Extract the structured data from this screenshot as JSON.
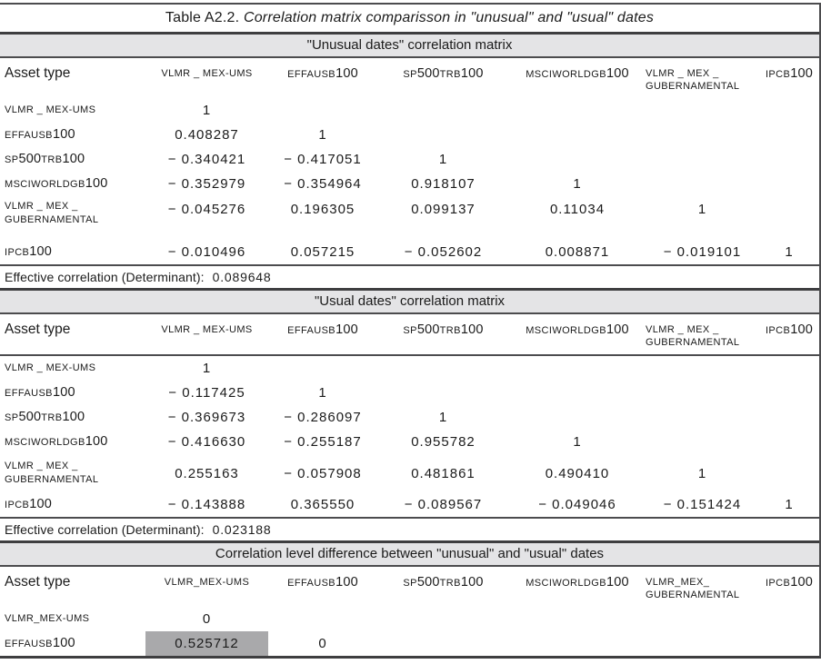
{
  "colors": {
    "text": "#1b1b1b",
    "rule": "#4c4c4e",
    "rule_thick": "#3e3e40",
    "band_bg": "#e4e4e6",
    "highlight_bg": "#a9a9ab"
  },
  "title": {
    "prefix": "Table A2.2. ",
    "rest": "Correlation matrix comparisson in \"unusual\" and \"usual\" dates"
  },
  "sections": [
    {
      "id": "unusual",
      "band_title": "\"Unusual dates\" correlation matrix",
      "headers": [
        "Asset type",
        "VLMR _ MEX-UMS",
        "EFFAUSB100",
        "SP500TRB100",
        "MSCIWORLDGB100",
        "VLMR _ MEX _\nGUBERNAMENTAL",
        "IPCB100"
      ],
      "rows": [
        {
          "label": "VLMR _ MEX-UMS",
          "values": [
            "1"
          ]
        },
        {
          "label": "EFFAUSB100",
          "values": [
            "0.408287",
            "1"
          ]
        },
        {
          "label": "SP500TRB100",
          "values": [
            "− 0.340421",
            "− 0.417051",
            "1"
          ]
        },
        {
          "label": "MSCIWORLDGB100",
          "values": [
            "− 0.352979",
            "− 0.354964",
            "0.918107",
            "1"
          ]
        },
        {
          "label": "VLMR _ MEX _\nGUBERNAMENTAL",
          "values": [
            "− 0.045276",
            "0.196305",
            "0.099137",
            "0.11034",
            "1"
          ]
        },
        {
          "label": "IPCB100",
          "values": [
            "− 0.010496",
            "0.057215",
            "− 0.052602",
            "0.008871",
            "− 0.019101",
            "1"
          ]
        }
      ],
      "footer": {
        "label": "Effective correlation (Determinant):",
        "value": "0.089648"
      }
    },
    {
      "id": "usual",
      "band_title": "\"Usual dates\" correlation matrix",
      "headers": [
        "Asset type",
        "VLMR _ MEX-UMS",
        "EFFAUSB100",
        "SP500TRB100",
        "MSCIWORLDGB100",
        "VLMR _ MEX _\nGUBERNAMENTAL",
        "IPCB100"
      ],
      "rows": [
        {
          "label": "VLMR _ MEX-UMS",
          "values": [
            "1"
          ]
        },
        {
          "label": "EFFAUSB100",
          "values": [
            "− 0.117425",
            "1"
          ]
        },
        {
          "label": "SP500TRB100",
          "values": [
            "− 0.369673",
            "− 0.286097",
            "1"
          ]
        },
        {
          "label": "MSCIWORLDGB100",
          "values": [
            "− 0.416630",
            "− 0.255187",
            "0.955782",
            "1"
          ]
        },
        {
          "label": "VLMR _ MEX _\nGUBERNAMENTAL",
          "values": [
            "0.255163",
            "− 0.057908",
            "0.481861",
            "0.490410",
            "1"
          ]
        },
        {
          "label": "IPCB100",
          "values": [
            "− 0.143888",
            "0.365550",
            "− 0.089567",
            "− 0.049046",
            "− 0.151424",
            "1"
          ]
        }
      ],
      "footer": {
        "label": "Effective correlation (Determinant):",
        "value": "0.023188"
      }
    },
    {
      "id": "difference",
      "band_title": "Correlation level difference between \"unusual\" and \"usual\" dates",
      "headers": [
        "Asset type",
        "VLMR_MEX-UMS",
        "EFFAUSB100",
        "SP500TRB100",
        "MSCIWORLDGB100",
        "VLMR_MEX_\nGUBERNAMENTAL",
        "IPCB100"
      ],
      "rows": [
        {
          "label": "VLMR_MEX-UMS",
          "values": [
            "0"
          ]
        },
        {
          "label": "EFFAUSB100",
          "values": [
            "0.525712",
            "0"
          ],
          "highlight_col": 0
        }
      ]
    }
  ]
}
